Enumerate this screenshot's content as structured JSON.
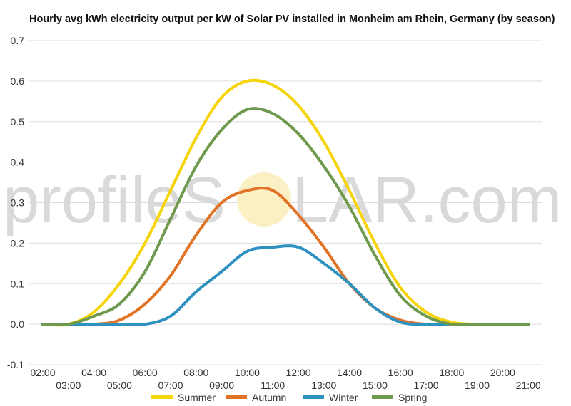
{
  "title": "Hourly avg kWh electricity output per kW of Solar PV installed in Monheim am Rhein, Germany (by season)",
  "watermark": {
    "left": "profileS",
    "right": "LAR.com"
  },
  "chart_data": {
    "type": "line",
    "title": "Hourly avg kWh electricity output per kW of Solar PV installed in Monheim am Rhein, Germany (by season)",
    "xlabel": "",
    "ylabel": "",
    "x": [
      "02:00",
      "03:00",
      "04:00",
      "05:00",
      "06:00",
      "07:00",
      "08:00",
      "09:00",
      "10:00",
      "11:00",
      "12:00",
      "13:00",
      "14:00",
      "15:00",
      "16:00",
      "17:00",
      "18:00",
      "19:00",
      "20:00",
      "21:00"
    ],
    "x_tick_labels_upper": [
      "02:00",
      "04:00",
      "06:00",
      "08:00",
      "10:00",
      "12:00",
      "14:00",
      "16:00",
      "18:00",
      "20:00"
    ],
    "x_tick_labels_lower": [
      "03:00",
      "05:00",
      "07:00",
      "09:00",
      "11:00",
      "13:00",
      "15:00",
      "17:00",
      "19:00",
      "21:00"
    ],
    "ylim": [
      -0.1,
      0.7
    ],
    "y_ticks": [
      "-0.1",
      "0.0",
      "0.1",
      "0.2",
      "0.3",
      "0.4",
      "0.5",
      "0.6",
      "0.7"
    ],
    "grid": true,
    "legend_position": "bottom",
    "series": [
      {
        "name": "Summer",
        "color": "#f5d40a",
        "values": [
          0,
          0,
          0.03,
          0.1,
          0.2,
          0.33,
          0.46,
          0.56,
          0.6,
          0.59,
          0.54,
          0.45,
          0.33,
          0.2,
          0.09,
          0.03,
          0.005,
          0,
          0,
          0
        ]
      },
      {
        "name": "Autumn",
        "color": "#e07325",
        "values": [
          0,
          0,
          0,
          0.01,
          0.05,
          0.12,
          0.22,
          0.3,
          0.33,
          0.33,
          0.27,
          0.19,
          0.1,
          0.04,
          0.01,
          0,
          0,
          0,
          0,
          0
        ]
      },
      {
        "name": "Winter",
        "color": "#2e91c0",
        "values": [
          0,
          0,
          0,
          0,
          0,
          0.02,
          0.08,
          0.13,
          0.18,
          0.19,
          0.19,
          0.15,
          0.1,
          0.04,
          0.005,
          0,
          0,
          0,
          0,
          0
        ]
      },
      {
        "name": "Spring",
        "color": "#6f9a4e",
        "values": [
          0,
          0,
          0.02,
          0.05,
          0.13,
          0.26,
          0.39,
          0.48,
          0.53,
          0.52,
          0.47,
          0.39,
          0.29,
          0.17,
          0.07,
          0.02,
          0,
          0,
          0,
          0
        ]
      }
    ]
  }
}
